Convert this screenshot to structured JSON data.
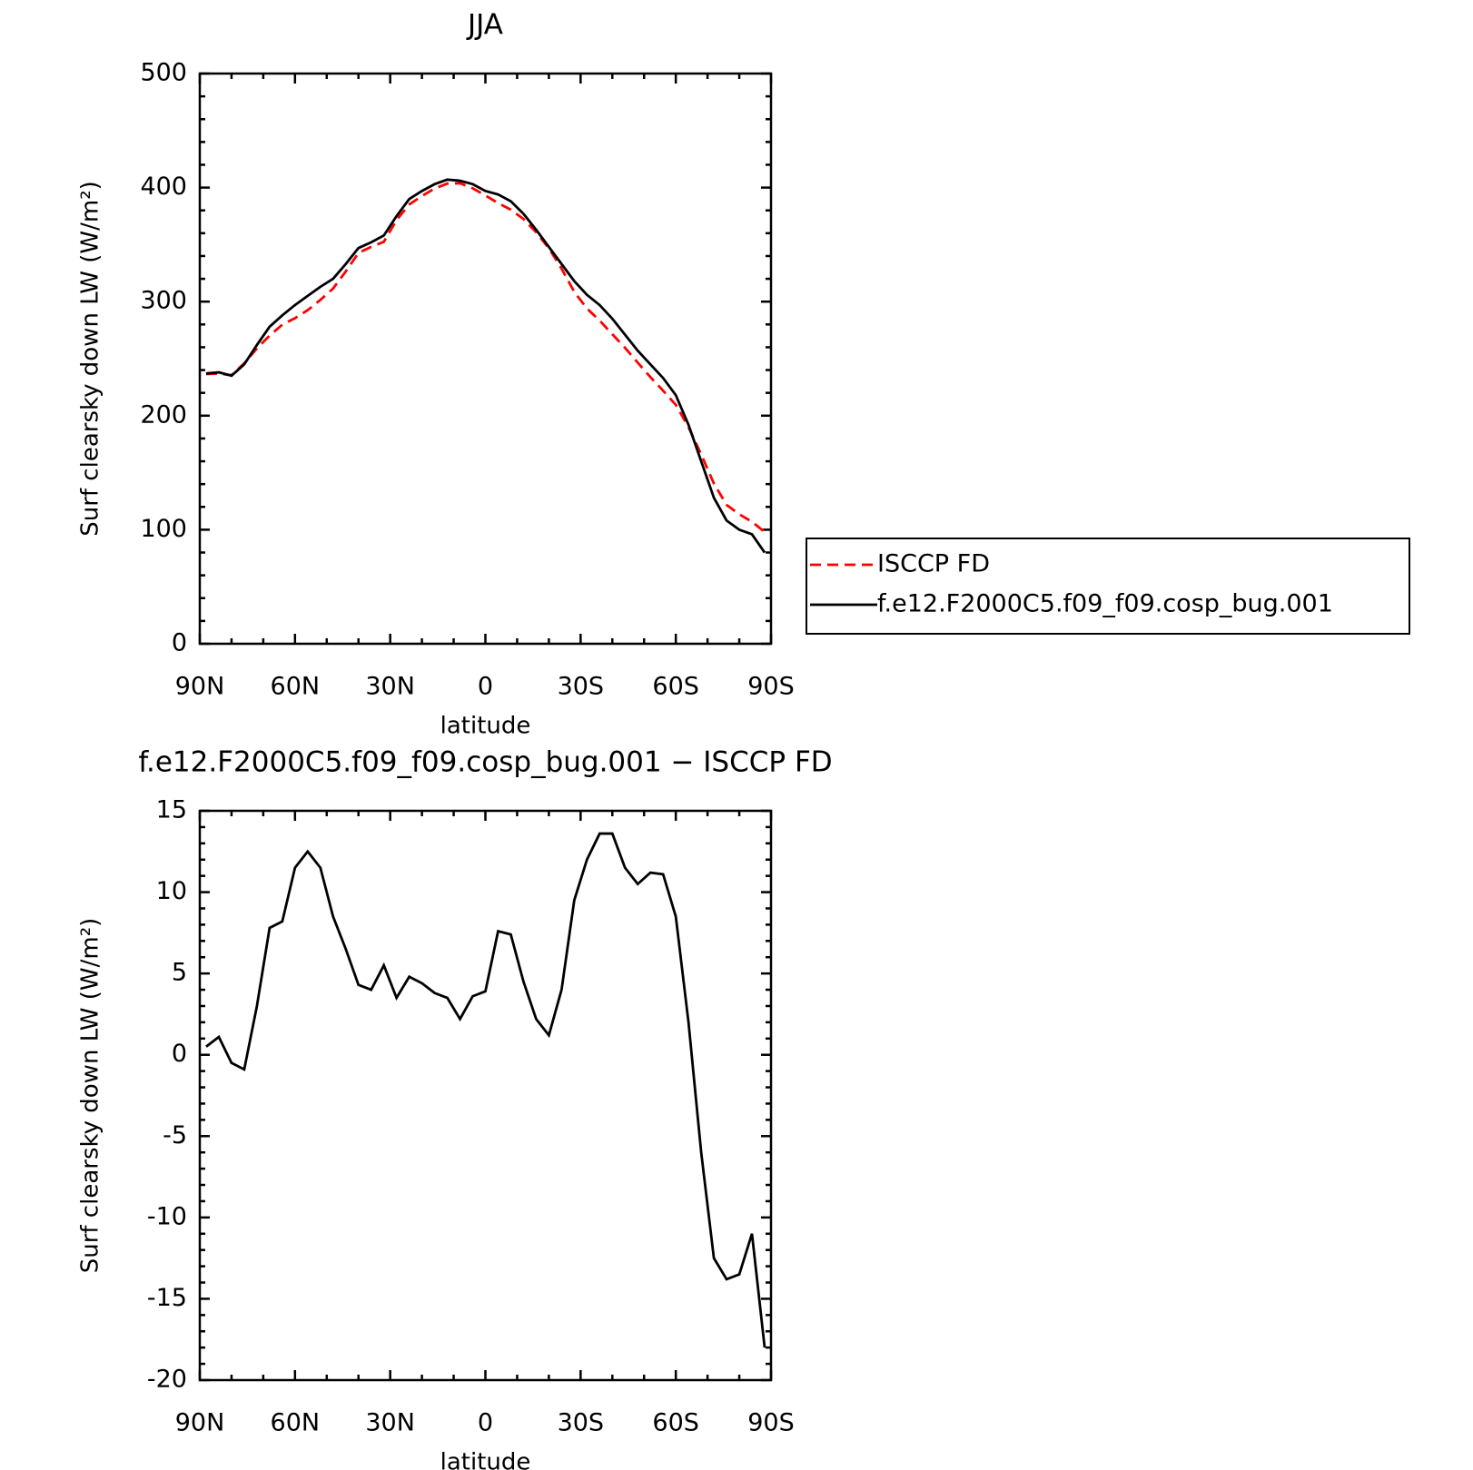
{
  "chart_data": [
    {
      "type": "line",
      "title": "JJA",
      "xlabel": "latitude",
      "ylabel": "Surf clearsky down LW (W/m²)",
      "x": [
        88,
        84,
        80,
        76,
        72,
        68,
        64,
        60,
        56,
        52,
        48,
        44,
        40,
        36,
        32,
        28,
        24,
        20,
        16,
        12,
        8,
        4,
        0,
        -4,
        -8,
        -12,
        -16,
        -20,
        -24,
        -28,
        -32,
        -36,
        -40,
        -44,
        -48,
        -52,
        -56,
        -60,
        -64,
        -68,
        -72,
        -76,
        -80,
        -84,
        -88
      ],
      "series": [
        {
          "name": "ISCCP FD",
          "color": "#ff0000",
          "dash": true,
          "values": [
            236.5,
            236.9,
            235.5,
            245.9,
            259,
            270.2,
            279.8,
            285.5,
            292.5,
            301.5,
            311.5,
            326.5,
            342.7,
            348,
            352.5,
            371.5,
            385.2,
            392.6,
            399.2,
            403.5,
            403.8,
            399.4,
            393.1,
            386.4,
            380.6,
            372.5,
            360.8,
            346.8,
            329,
            308.5,
            294,
            283.4,
            271.4,
            259.5,
            246.5,
            233.8,
            221.9,
            209.5,
            190,
            166,
            140.5,
            121.8,
            113.5,
            107,
            98
          ]
        },
        {
          "name": "f.e12.F2000C5.f09_f09.cosp_bug.001",
          "color": "#000000",
          "dash": false,
          "values": [
            237,
            238,
            235,
            245,
            262,
            278,
            288,
            297,
            305,
            313,
            320,
            333,
            347,
            352,
            358,
            375,
            390,
            397,
            403,
            407,
            406,
            403,
            397,
            394,
            388,
            377,
            363,
            348,
            333,
            318,
            306,
            297,
            285,
            271,
            257,
            245,
            233,
            218,
            192,
            160,
            128,
            108,
            100,
            96,
            80
          ]
        }
      ],
      "xlim": [
        90,
        -90
      ],
      "xticks": [
        {
          "value": 90,
          "label": "90N"
        },
        {
          "value": 60,
          "label": "60N"
        },
        {
          "value": 30,
          "label": "30N"
        },
        0,
        {
          "value": -30,
          "label": "30S"
        },
        {
          "value": -60,
          "label": "60S"
        },
        {
          "value": -90,
          "label": "90S"
        }
      ],
      "ylim": [
        0,
        500
      ],
      "yticks": [
        0,
        100,
        200,
        300,
        400,
        500
      ]
    },
    {
      "type": "line",
      "title": "f.e12.F2000C5.f09_f09.cosp_bug.001 − ISCCP FD",
      "xlabel": "latitude",
      "ylabel": "Surf clearsky down LW (W/m²)",
      "x": [
        88,
        84,
        80,
        76,
        72,
        68,
        64,
        60,
        56,
        52,
        48,
        44,
        40,
        36,
        32,
        28,
        24,
        20,
        16,
        12,
        8,
        4,
        0,
        -4,
        -8,
        -12,
        -16,
        -20,
        -24,
        -28,
        -32,
        -36,
        -40,
        -44,
        -48,
        -52,
        -56,
        -60,
        -64,
        -68,
        -72,
        -76,
        -80,
        -84,
        -88
      ],
      "series": [
        {
          "color": "#000000",
          "dash": false,
          "values": [
            0.5,
            1.1,
            -0.5,
            -0.9,
            3,
            7.8,
            8.2,
            11.5,
            12.5,
            11.5,
            8.5,
            6.5,
            4.3,
            4,
            5.5,
            3.5,
            4.8,
            4.4,
            3.8,
            3.5,
            2.2,
            3.6,
            3.9,
            7.6,
            7.4,
            4.5,
            2.2,
            1.2,
            4,
            9.5,
            12,
            13.6,
            13.6,
            11.5,
            10.5,
            11.2,
            11.1,
            8.5,
            2,
            -6,
            -12.5,
            -13.8,
            -13.5,
            -11,
            -18
          ]
        }
      ],
      "xlim": [
        90,
        -90
      ],
      "xticks": [
        {
          "value": 90,
          "label": "90N"
        },
        {
          "value": 60,
          "label": "60N"
        },
        {
          "value": 30,
          "label": "30N"
        },
        0,
        {
          "value": -30,
          "label": "30S"
        },
        {
          "value": -60,
          "label": "60S"
        },
        {
          "value": -90,
          "label": "90S"
        }
      ],
      "ylim": [
        -20,
        15
      ],
      "yticks": [
        -20,
        -15,
        -10,
        -5,
        0,
        5,
        10,
        15
      ]
    }
  ]
}
